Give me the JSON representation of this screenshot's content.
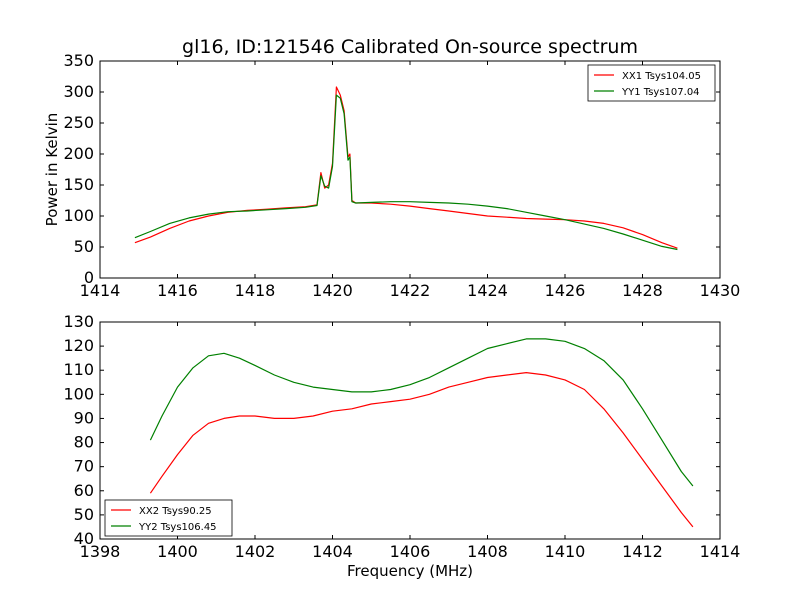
{
  "title": "gl16, ID:121546 Calibrated On-source spectrum",
  "chart_data": [
    {
      "type": "line",
      "ylabel": "Power in Kelvin",
      "xlabel": "",
      "xlim": [
        1414,
        1430
      ],
      "ylim": [
        0,
        350
      ],
      "xticks": [
        "1414",
        "1416",
        "1418",
        "1420",
        "1422",
        "1424",
        "1426",
        "1428",
        "1430"
      ],
      "yticks": [
        "0",
        "50",
        "100",
        "150",
        "200",
        "250",
        "300",
        "350"
      ],
      "legend_position": "top-right",
      "series": [
        {
          "name": "XX1 Tsys104.05",
          "color": "#ff0000",
          "x": [
            1414.9,
            1415.3,
            1415.8,
            1416.3,
            1416.8,
            1417.3,
            1417.8,
            1418.3,
            1418.8,
            1419.3,
            1419.6,
            1419.7,
            1419.8,
            1419.9,
            1420.0,
            1420.1,
            1420.2,
            1420.3,
            1420.4,
            1420.45,
            1420.5,
            1420.6,
            1421.0,
            1421.5,
            1422.0,
            1422.5,
            1423.0,
            1423.5,
            1424.0,
            1424.5,
            1425.0,
            1425.5,
            1426.0,
            1426.5,
            1427.0,
            1427.5,
            1428.0,
            1428.5,
            1428.9
          ],
          "values": [
            57,
            66,
            80,
            92,
            100,
            106,
            109,
            111,
            113,
            115,
            118,
            170,
            145,
            150,
            185,
            308,
            295,
            270,
            195,
            200,
            125,
            121,
            121,
            119,
            116,
            112,
            108,
            104,
            100,
            98,
            96,
            95,
            94,
            92,
            88,
            81,
            70,
            57,
            48
          ]
        },
        {
          "name": "YY1 Tsys107.04",
          "color": "#008000",
          "x": [
            1414.9,
            1415.3,
            1415.8,
            1416.3,
            1416.8,
            1417.3,
            1417.8,
            1418.3,
            1418.8,
            1419.3,
            1419.6,
            1419.7,
            1419.8,
            1419.9,
            1420.0,
            1420.1,
            1420.2,
            1420.3,
            1420.4,
            1420.45,
            1420.5,
            1420.6,
            1421.0,
            1421.5,
            1422.0,
            1422.5,
            1423.0,
            1423.5,
            1424.0,
            1424.5,
            1425.0,
            1425.5,
            1426.0,
            1426.5,
            1427.0,
            1427.5,
            1428.0,
            1428.5,
            1428.9
          ],
          "values": [
            65,
            75,
            88,
            97,
            103,
            107,
            108,
            110,
            112,
            114,
            117,
            165,
            148,
            145,
            180,
            295,
            290,
            265,
            190,
            195,
            123,
            121,
            122,
            123,
            123,
            122,
            121,
            119,
            116,
            112,
            106,
            100,
            94,
            87,
            80,
            71,
            61,
            51,
            46
          ]
        }
      ]
    },
    {
      "type": "line",
      "ylabel": "",
      "xlabel": "Frequency (MHz)",
      "xlim": [
        1398,
        1414
      ],
      "ylim": [
        40,
        130
      ],
      "xticks": [
        "1398",
        "1400",
        "1402",
        "1404",
        "1406",
        "1408",
        "1410",
        "1412",
        "1414"
      ],
      "yticks": [
        "40",
        "50",
        "60",
        "70",
        "80",
        "90",
        "100",
        "110",
        "120",
        "130"
      ],
      "legend_position": "bottom-left",
      "series": [
        {
          "name": "XX2 Tsys90.25",
          "color": "#ff0000",
          "x": [
            1399.3,
            1399.6,
            1400.0,
            1400.4,
            1400.8,
            1401.2,
            1401.6,
            1402.0,
            1402.5,
            1403.0,
            1403.5,
            1404.0,
            1404.5,
            1405.0,
            1405.5,
            1406.0,
            1406.5,
            1407.0,
            1407.5,
            1408.0,
            1408.5,
            1409.0,
            1409.5,
            1410.0,
            1410.5,
            1411.0,
            1411.5,
            1412.0,
            1412.5,
            1413.0,
            1413.3
          ],
          "values": [
            59,
            66,
            75,
            83,
            88,
            90,
            91,
            91,
            90,
            90,
            91,
            93,
            94,
            96,
            97,
            98,
            100,
            103,
            105,
            107,
            108,
            109,
            108,
            106,
            102,
            94,
            84,
            73,
            62,
            51,
            45
          ]
        },
        {
          "name": "YY2 Tsys106.45",
          "color": "#008000",
          "x": [
            1399.3,
            1399.6,
            1400.0,
            1400.4,
            1400.8,
            1401.2,
            1401.6,
            1402.0,
            1402.5,
            1403.0,
            1403.5,
            1404.0,
            1404.5,
            1405.0,
            1405.5,
            1406.0,
            1406.5,
            1407.0,
            1407.5,
            1408.0,
            1408.5,
            1409.0,
            1409.5,
            1410.0,
            1410.5,
            1411.0,
            1411.5,
            1412.0,
            1412.5,
            1413.0,
            1413.3
          ],
          "values": [
            81,
            91,
            103,
            111,
            116,
            117,
            115,
            112,
            108,
            105,
            103,
            102,
            101,
            101,
            102,
            104,
            107,
            111,
            115,
            119,
            121,
            123,
            123,
            122,
            119,
            114,
            106,
            94,
            81,
            68,
            62
          ]
        }
      ]
    }
  ]
}
